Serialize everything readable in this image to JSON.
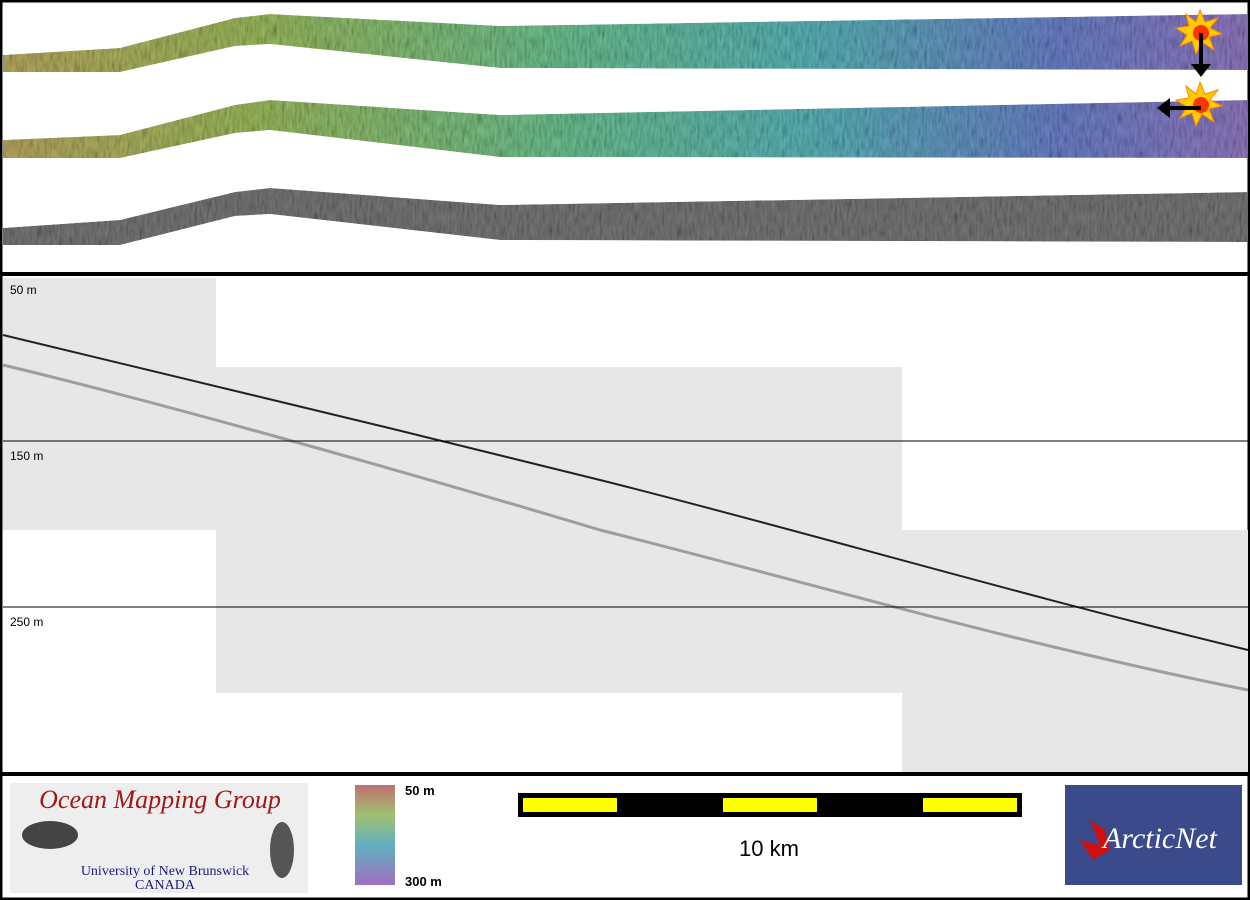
{
  "profile": {
    "depth_labels": [
      "50 m",
      "150 m",
      "250 m"
    ]
  },
  "logo": {
    "title": "Ocean Mapping Group",
    "university": "University of New Brunswick",
    "country": "CANADA"
  },
  "colorbar": {
    "top_label": "50 m",
    "bottom_label": "300 m"
  },
  "scale_bar": {
    "label": "10 km"
  },
  "partner_logo": {
    "name": "ArcticNet"
  }
}
